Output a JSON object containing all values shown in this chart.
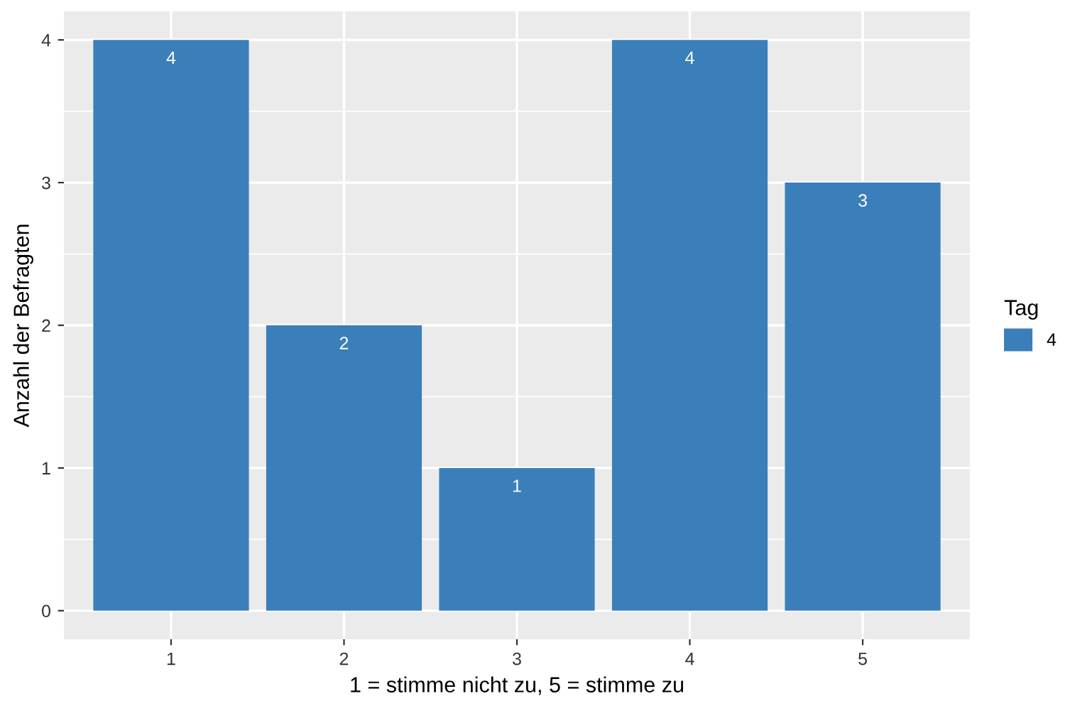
{
  "chart_data": {
    "type": "bar",
    "xlabel": "1 = stimme nicht zu, 5 = stimme zu",
    "ylabel": "Anzahl der Befragten",
    "legend_title": "Tag",
    "x": [
      1,
      2,
      3,
      4,
      5
    ],
    "series": [
      {
        "name": "4",
        "color": "#3a7fba",
        "values": [
          4,
          2,
          1,
          4,
          3
        ]
      }
    ],
    "xlim": [
      0.38,
      5.62
    ],
    "xticks": [
      1,
      2,
      3,
      4,
      5
    ],
    "ylim": [
      -0.2,
      4.2
    ],
    "yticks": [
      0,
      1,
      2,
      3,
      4
    ],
    "grid": true,
    "legend": "right",
    "data_labels": true
  }
}
